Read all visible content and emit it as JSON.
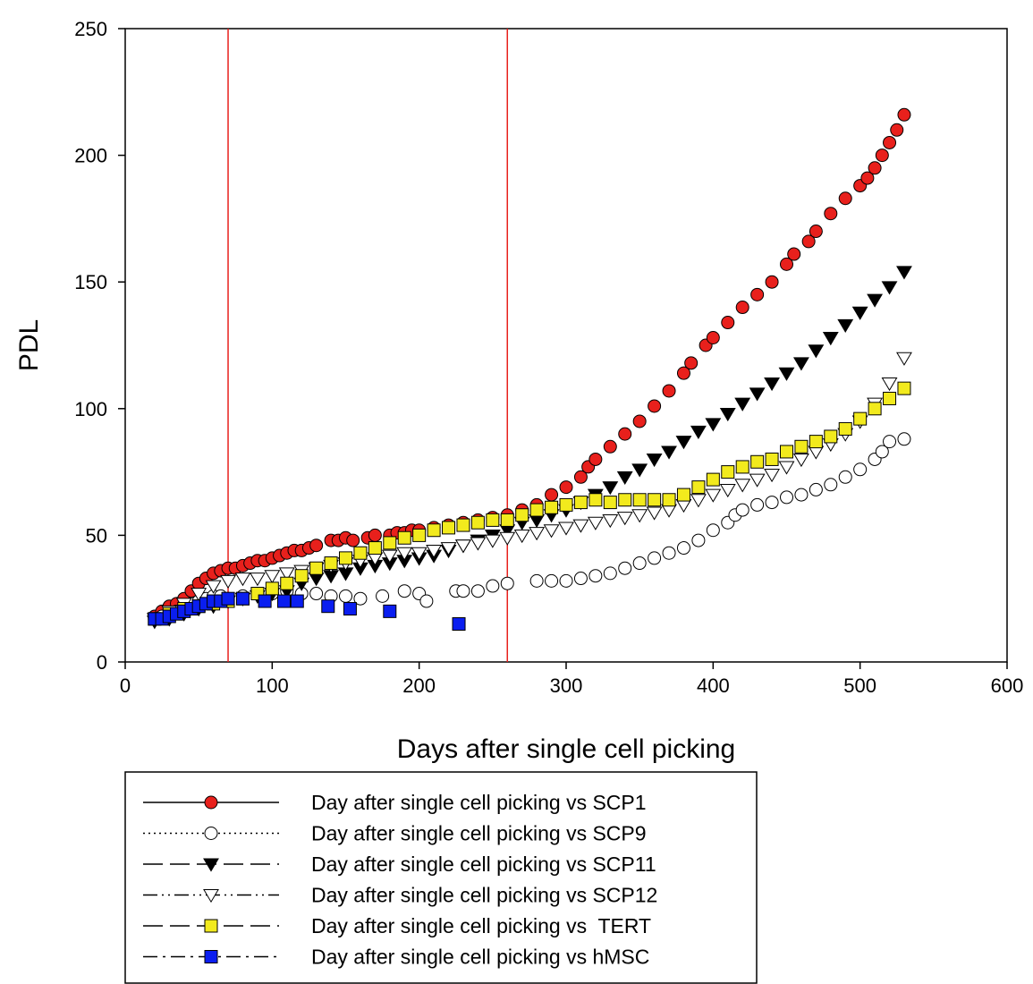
{
  "chart_data": {
    "type": "scatter",
    "title": "",
    "xlabel": "Days after single cell picking",
    "ylabel": "PDL",
    "xlim": [
      0,
      600
    ],
    "ylim": [
      0,
      250
    ],
    "x_ticks": [
      "0",
      "100",
      "200",
      "300",
      "400",
      "500",
      "600"
    ],
    "y_ticks": [
      "0",
      "50",
      "100",
      "150",
      "200",
      "250"
    ],
    "grid": false,
    "legend_position": "bottom",
    "reference_lines": [
      {
        "axis": "x",
        "value": 70,
        "color": "#e8201c"
      },
      {
        "axis": "x",
        "value": 260,
        "color": "#e8201c"
      }
    ],
    "series": [
      {
        "name": "Day after single cell picking vs SCP1",
        "marker": "circle",
        "fill": "#e8201c",
        "stroke": "#000000",
        "line": "solid",
        "points": [
          [
            20,
            18
          ],
          [
            25,
            20
          ],
          [
            30,
            22
          ],
          [
            35,
            23
          ],
          [
            40,
            25
          ],
          [
            45,
            28
          ],
          [
            50,
            31
          ],
          [
            55,
            33
          ],
          [
            60,
            35
          ],
          [
            65,
            36
          ],
          [
            70,
            37
          ],
          [
            75,
            37
          ],
          [
            80,
            38
          ],
          [
            85,
            39
          ],
          [
            90,
            40
          ],
          [
            95,
            40
          ],
          [
            100,
            41
          ],
          [
            105,
            42
          ],
          [
            110,
            43
          ],
          [
            115,
            44
          ],
          [
            120,
            44
          ],
          [
            125,
            45
          ],
          [
            130,
            46
          ],
          [
            140,
            48
          ],
          [
            145,
            48
          ],
          [
            150,
            49
          ],
          [
            155,
            48
          ],
          [
            165,
            49
          ],
          [
            170,
            50
          ],
          [
            180,
            50
          ],
          [
            185,
            51
          ],
          [
            190,
            51
          ],
          [
            195,
            52
          ],
          [
            200,
            52
          ],
          [
            210,
            53
          ],
          [
            220,
            54
          ],
          [
            230,
            55
          ],
          [
            240,
            56
          ],
          [
            250,
            57
          ],
          [
            260,
            58
          ],
          [
            270,
            60
          ],
          [
            280,
            62
          ],
          [
            290,
            66
          ],
          [
            300,
            69
          ],
          [
            310,
            73
          ],
          [
            315,
            77
          ],
          [
            320,
            80
          ],
          [
            330,
            85
          ],
          [
            340,
            90
          ],
          [
            350,
            95
          ],
          [
            360,
            101
          ],
          [
            370,
            107
          ],
          [
            380,
            114
          ],
          [
            385,
            118
          ],
          [
            395,
            125
          ],
          [
            400,
            128
          ],
          [
            410,
            134
          ],
          [
            420,
            140
          ],
          [
            430,
            145
          ],
          [
            440,
            150
          ],
          [
            450,
            157
          ],
          [
            455,
            161
          ],
          [
            465,
            166
          ],
          [
            470,
            170
          ],
          [
            480,
            177
          ],
          [
            490,
            183
          ],
          [
            500,
            188
          ],
          [
            505,
            191
          ],
          [
            510,
            195
          ],
          [
            515,
            200
          ],
          [
            520,
            205
          ],
          [
            525,
            210
          ],
          [
            530,
            216
          ]
        ]
      },
      {
        "name": "Day after single cell picking vs SCP9",
        "marker": "circle",
        "fill": "#ffffff",
        "stroke": "#000000",
        "line": "dotted",
        "points": [
          [
            20,
            17
          ],
          [
            25,
            18
          ],
          [
            30,
            19
          ],
          [
            35,
            20
          ],
          [
            40,
            22
          ],
          [
            45,
            23
          ],
          [
            50,
            24
          ],
          [
            55,
            25
          ],
          [
            60,
            26
          ],
          [
            65,
            26
          ],
          [
            70,
            25
          ],
          [
            80,
            26
          ],
          [
            90,
            27
          ],
          [
            100,
            27
          ],
          [
            110,
            28
          ],
          [
            120,
            27
          ],
          [
            130,
            27
          ],
          [
            140,
            26
          ],
          [
            150,
            26
          ],
          [
            160,
            25
          ],
          [
            175,
            26
          ],
          [
            190,
            28
          ],
          [
            200,
            27
          ],
          [
            205,
            24
          ],
          [
            225,
            28
          ],
          [
            230,
            28
          ],
          [
            240,
            28
          ],
          [
            250,
            30
          ],
          [
            260,
            31
          ],
          [
            280,
            32
          ],
          [
            290,
            32
          ],
          [
            300,
            32
          ],
          [
            310,
            33
          ],
          [
            320,
            34
          ],
          [
            330,
            35
          ],
          [
            340,
            37
          ],
          [
            350,
            39
          ],
          [
            360,
            41
          ],
          [
            370,
            43
          ],
          [
            380,
            45
          ],
          [
            390,
            48
          ],
          [
            400,
            52
          ],
          [
            410,
            55
          ],
          [
            415,
            58
          ],
          [
            420,
            60
          ],
          [
            430,
            62
          ],
          [
            440,
            63
          ],
          [
            450,
            65
          ],
          [
            460,
            66
          ],
          [
            470,
            68
          ],
          [
            480,
            70
          ],
          [
            490,
            73
          ],
          [
            500,
            76
          ],
          [
            510,
            80
          ],
          [
            515,
            83
          ],
          [
            520,
            87
          ],
          [
            530,
            88
          ]
        ]
      },
      {
        "name": "Day after single cell picking vs SCP11",
        "marker": "triangle-down",
        "fill": "#000000",
        "stroke": "#000000",
        "line": "long-dash",
        "points": [
          [
            20,
            16
          ],
          [
            30,
            17
          ],
          [
            40,
            19
          ],
          [
            50,
            21
          ],
          [
            60,
            22
          ],
          [
            70,
            24
          ],
          [
            80,
            25
          ],
          [
            90,
            26
          ],
          [
            100,
            27
          ],
          [
            110,
            28
          ],
          [
            120,
            31
          ],
          [
            130,
            33
          ],
          [
            140,
            34
          ],
          [
            150,
            35
          ],
          [
            160,
            37
          ],
          [
            170,
            38
          ],
          [
            180,
            39
          ],
          [
            190,
            40
          ],
          [
            200,
            41
          ],
          [
            210,
            42
          ],
          [
            220,
            44
          ],
          [
            230,
            46
          ],
          [
            240,
            48
          ],
          [
            250,
            50
          ],
          [
            260,
            52
          ],
          [
            270,
            55
          ],
          [
            280,
            56
          ],
          [
            290,
            58
          ],
          [
            300,
            60
          ],
          [
            310,
            63
          ],
          [
            320,
            66
          ],
          [
            330,
            69
          ],
          [
            340,
            73
          ],
          [
            350,
            76
          ],
          [
            360,
            80
          ],
          [
            370,
            83
          ],
          [
            380,
            87
          ],
          [
            390,
            91
          ],
          [
            400,
            94
          ],
          [
            410,
            98
          ],
          [
            420,
            102
          ],
          [
            430,
            106
          ],
          [
            440,
            110
          ],
          [
            450,
            114
          ],
          [
            460,
            118
          ],
          [
            470,
            123
          ],
          [
            480,
            128
          ],
          [
            490,
            133
          ],
          [
            500,
            138
          ],
          [
            510,
            143
          ],
          [
            520,
            148
          ],
          [
            530,
            154
          ]
        ]
      },
      {
        "name": "Day after single cell picking vs SCP12",
        "marker": "triangle-down",
        "fill": "#ffffff",
        "stroke": "#000000",
        "line": "dash-dot-dot",
        "points": [
          [
            20,
            17
          ],
          [
            30,
            20
          ],
          [
            40,
            23
          ],
          [
            50,
            27
          ],
          [
            60,
            30
          ],
          [
            70,
            32
          ],
          [
            80,
            33
          ],
          [
            90,
            33
          ],
          [
            100,
            34
          ],
          [
            110,
            35
          ],
          [
            120,
            36
          ],
          [
            130,
            37
          ],
          [
            140,
            38
          ],
          [
            150,
            39
          ],
          [
            160,
            40
          ],
          [
            170,
            41
          ],
          [
            180,
            42
          ],
          [
            190,
            43
          ],
          [
            200,
            43
          ],
          [
            210,
            44
          ],
          [
            220,
            45
          ],
          [
            230,
            46
          ],
          [
            240,
            47
          ],
          [
            250,
            48
          ],
          [
            260,
            49
          ],
          [
            270,
            50
          ],
          [
            280,
            51
          ],
          [
            290,
            52
          ],
          [
            300,
            53
          ],
          [
            310,
            54
          ],
          [
            320,
            55
          ],
          [
            330,
            56
          ],
          [
            340,
            57
          ],
          [
            350,
            58
          ],
          [
            360,
            59
          ],
          [
            370,
            60
          ],
          [
            380,
            62
          ],
          [
            390,
            64
          ],
          [
            400,
            66
          ],
          [
            410,
            68
          ],
          [
            420,
            70
          ],
          [
            430,
            72
          ],
          [
            440,
            74
          ],
          [
            450,
            77
          ],
          [
            460,
            80
          ],
          [
            470,
            83
          ],
          [
            480,
            86
          ],
          [
            490,
            90
          ],
          [
            500,
            95
          ],
          [
            510,
            102
          ],
          [
            520,
            110
          ],
          [
            530,
            120
          ]
        ]
      },
      {
        "name": "Day after single cell picking vs  TERT",
        "marker": "square",
        "fill": "#f2ea1d",
        "stroke": "#000000",
        "line": "long-dash",
        "points": [
          [
            20,
            17
          ],
          [
            30,
            19
          ],
          [
            40,
            21
          ],
          [
            50,
            22
          ],
          [
            60,
            23
          ],
          [
            70,
            24
          ],
          [
            80,
            25
          ],
          [
            90,
            27
          ],
          [
            100,
            29
          ],
          [
            110,
            31
          ],
          [
            120,
            34
          ],
          [
            130,
            37
          ],
          [
            140,
            39
          ],
          [
            150,
            41
          ],
          [
            160,
            43
          ],
          [
            170,
            45
          ],
          [
            180,
            47
          ],
          [
            190,
            49
          ],
          [
            200,
            50
          ],
          [
            210,
            52
          ],
          [
            220,
            53
          ],
          [
            230,
            54
          ],
          [
            240,
            55
          ],
          [
            250,
            56
          ],
          [
            260,
            56
          ],
          [
            270,
            58
          ],
          [
            280,
            60
          ],
          [
            290,
            61
          ],
          [
            300,
            62
          ],
          [
            310,
            63
          ],
          [
            320,
            64
          ],
          [
            330,
            63
          ],
          [
            340,
            64
          ],
          [
            350,
            64
          ],
          [
            360,
            64
          ],
          [
            370,
            64
          ],
          [
            380,
            66
          ],
          [
            390,
            69
          ],
          [
            400,
            72
          ],
          [
            410,
            75
          ],
          [
            420,
            77
          ],
          [
            430,
            79
          ],
          [
            440,
            80
          ],
          [
            450,
            83
          ],
          [
            460,
            85
          ],
          [
            470,
            87
          ],
          [
            480,
            89
          ],
          [
            490,
            92
          ],
          [
            500,
            96
          ],
          [
            510,
            100
          ],
          [
            520,
            104
          ],
          [
            530,
            108
          ]
        ]
      },
      {
        "name": "Day after single cell picking vs hMSC",
        "marker": "square",
        "fill": "#0a1ef0",
        "stroke": "#000000",
        "line": "dash-dot",
        "points": [
          [
            20,
            17
          ],
          [
            25,
            17
          ],
          [
            30,
            18
          ],
          [
            35,
            19
          ],
          [
            40,
            20
          ],
          [
            45,
            21
          ],
          [
            50,
            22
          ],
          [
            55,
            23
          ],
          [
            60,
            24
          ],
          [
            65,
            24
          ],
          [
            70,
            25
          ],
          [
            80,
            25
          ],
          [
            95,
            24
          ],
          [
            108,
            24
          ],
          [
            117,
            24
          ],
          [
            138,
            22
          ],
          [
            153,
            21
          ],
          [
            180,
            20
          ],
          [
            227,
            15
          ]
        ]
      }
    ]
  }
}
